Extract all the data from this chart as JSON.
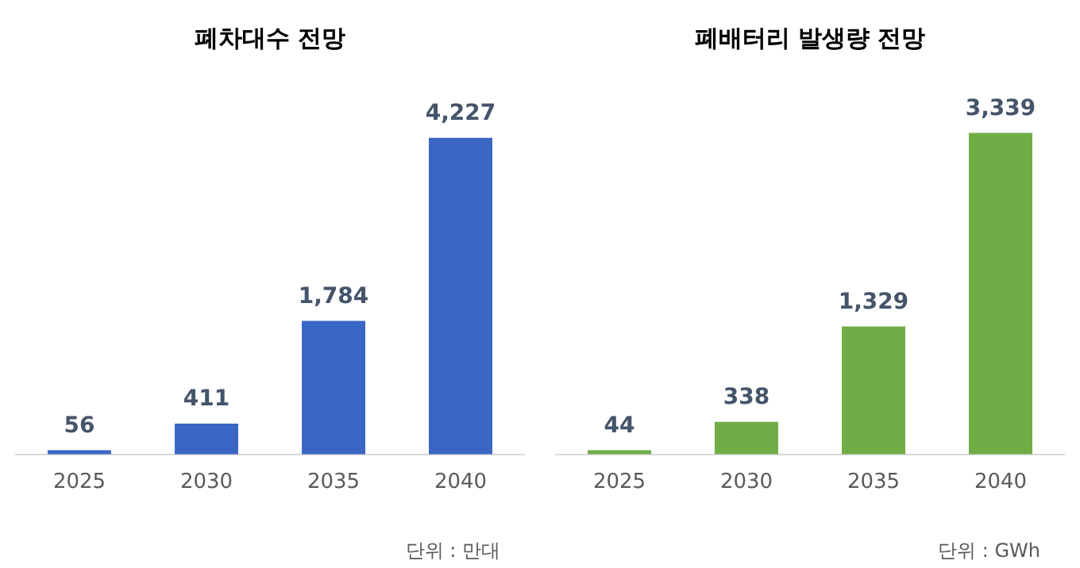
{
  "chart_data": [
    {
      "type": "bar",
      "title": "폐차대수 전망",
      "categories": [
        "2025",
        "2030",
        "2035",
        "2040"
      ],
      "values": [
        56,
        411,
        1784,
        4227
      ],
      "value_labels": [
        "56",
        "411",
        "1,784",
        "4,227"
      ],
      "color": "#3a67c6",
      "grid": false,
      "legend": false,
      "tick_labels": "x",
      "annotations": [
        "단위 : 만대"
      ]
    },
    {
      "type": "bar",
      "title": "폐배터리 발생량 전망",
      "categories": [
        "2025",
        "2030",
        "2035",
        "2040"
      ],
      "values": [
        44,
        338,
        1329,
        3339
      ],
      "value_labels": [
        "44",
        "338",
        "1,329",
        "3,339"
      ],
      "color": "#70ad47",
      "grid": false,
      "legend": false,
      "tick_labels": "x",
      "annotations": [
        "단위 : GWh"
      ]
    }
  ]
}
